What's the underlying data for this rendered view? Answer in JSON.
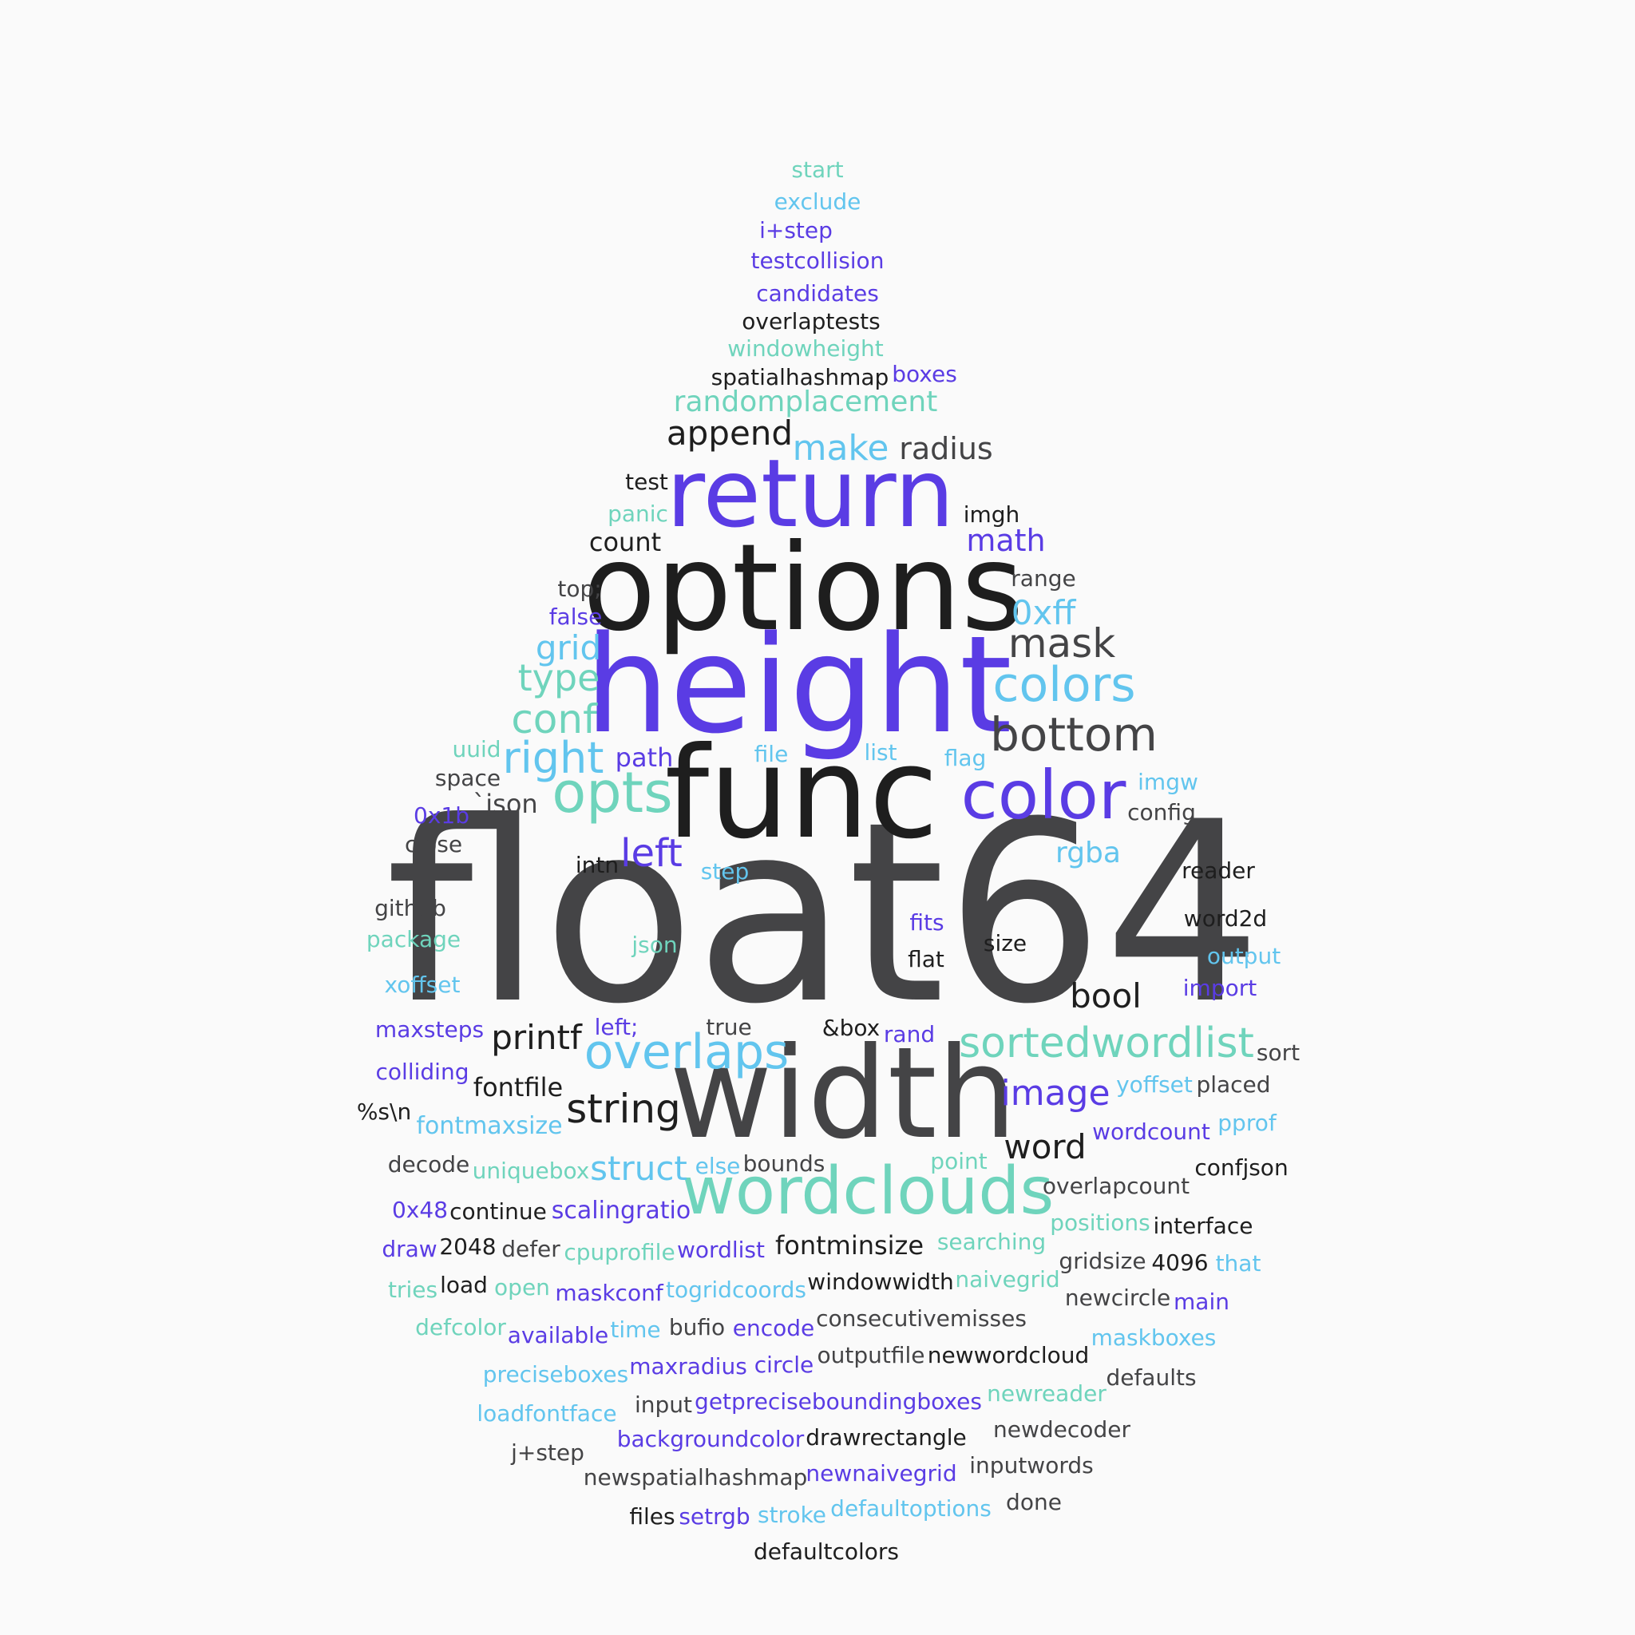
{
  "palette": [
    "#1e1e1e",
    "#444446",
    "#5a3ce4",
    "#62c5ee",
    "#6fd4bc"
  ],
  "background": "#fafafa",
  "words": [
    "float64",
    "width",
    "options",
    "height",
    "func",
    "return",
    "wordclouds",
    "color",
    "bottom",
    "opts",
    "colors",
    "overlaps",
    "sortedwordlist",
    "mask",
    "right",
    "string",
    "conf",
    "type",
    "left",
    "append",
    "make",
    "printf",
    "grid",
    "image",
    "struct",
    "randomplacement",
    "word",
    "bool",
    "0xff",
    "radius",
    "math",
    "rgba",
    "scalingratio",
    "fontmaxsize",
    "fontminsize",
    "fontfile",
    "sort",
    "spatialhashmap",
    "overlaptests",
    "testcollision",
    "candidates",
    "windowheight",
    "exclude",
    "i+step",
    "start",
    "boxes",
    "count",
    "test",
    "panic",
    "imgh",
    "range",
    "top;",
    "false",
    "uuid",
    "space",
    "`json",
    "0x1b",
    "close",
    "intn",
    "path",
    "file",
    "list",
    "flag",
    "imgw",
    "config",
    "step",
    "reader",
    "github",
    "package",
    "fits",
    "json",
    "flat",
    "size",
    "word2d",
    "output",
    "xoffset",
    "import",
    "maxsteps",
    "left;",
    "true",
    "&box",
    "rand",
    "colliding",
    "yoffset",
    "placed",
    "%s\\n",
    "wordcount",
    "pprof",
    "decode",
    "uniquebox",
    "else",
    "bounds",
    "point",
    "confjson",
    "overlapcount",
    "0x48",
    "continue",
    "positions",
    "interface",
    "draw",
    "2048",
    "defer",
    "cpuprofile",
    "wordlist",
    "searching",
    "gridsize",
    "4096",
    "that",
    "tries",
    "load",
    "open",
    "maskconf",
    "togridcoords",
    "windowwidth",
    "naivegrid",
    "newcircle",
    "main",
    "defcolor",
    "available",
    "time",
    "bufio",
    "encode",
    "consecutivemisses",
    "maskboxes",
    "preciseboxes",
    "maxradius",
    "circle",
    "outputfile",
    "newwordcloud",
    "defaults",
    "loadfontface",
    "input",
    "getpreciseboundingboxes",
    "newreader",
    "j+step",
    "backgroundcolor",
    "drawrectangle",
    "newdecoder",
    "newspatialhashmap",
    "newnaivegrid",
    "inputwords",
    "files",
    "setrgb",
    "stroke",
    "defaultoptions",
    "done",
    "defaultcolors"
  ]
}
